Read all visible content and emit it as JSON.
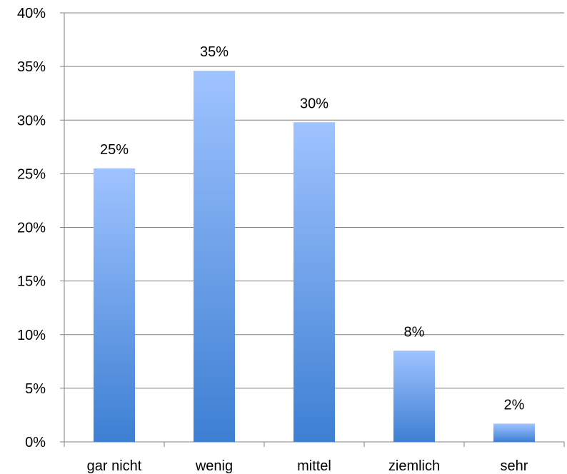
{
  "chart_data": {
    "type": "bar",
    "categories": [
      "gar nicht",
      "wenig",
      "mittel",
      "ziemlich",
      "sehr"
    ],
    "values": [
      25.5,
      34.6,
      29.8,
      8.5,
      1.7
    ],
    "data_labels": [
      "25%",
      "35%",
      "30%",
      "8%",
      "2%"
    ],
    "y_tick_labels": [
      "0%",
      "5%",
      "10%",
      "15%",
      "20%",
      "25%",
      "30%",
      "35%",
      "40%"
    ],
    "y_ticks": [
      0,
      5,
      10,
      15,
      20,
      25,
      30,
      35,
      40
    ],
    "ylim": [
      0,
      40
    ],
    "grid": true,
    "legend": "none"
  },
  "colors": {
    "bar_top": "#9fc3ff",
    "bar_bottom": "#3d7fd3",
    "grid": "#808080",
    "text": "#000000"
  }
}
